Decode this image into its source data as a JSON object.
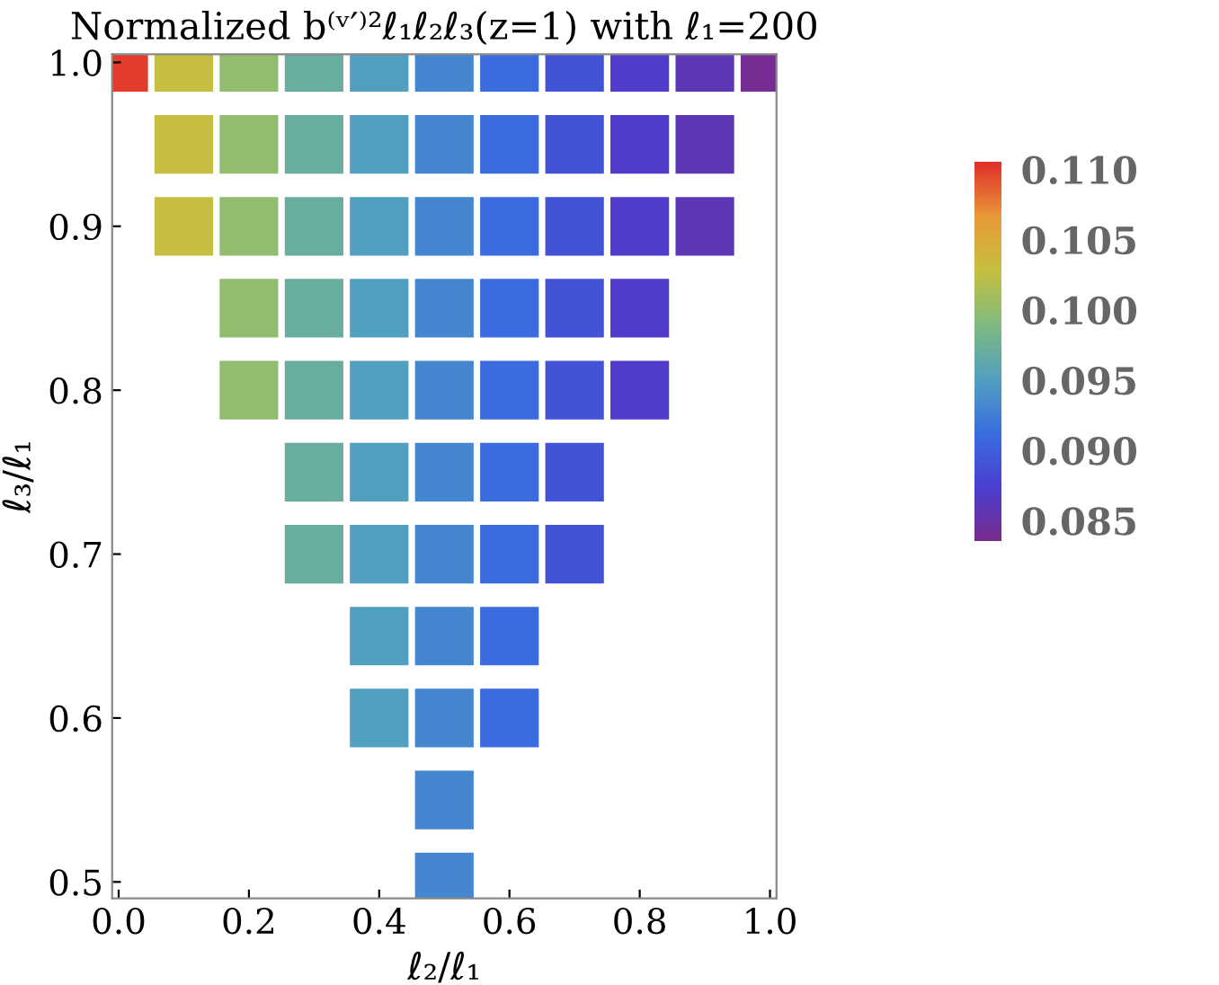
{
  "chart_data": {
    "type": "scatter",
    "title": "Normalized b⁽ᵛ′⁾²ℓ₁ℓ₂ℓ₃(z=1) with ℓ₁=200",
    "xlabel": "ℓ₂/ℓ₁",
    "ylabel": "ℓ₃/ℓ₁",
    "xlim": [
      -0.01,
      1.01
    ],
    "ylim": [
      0.49,
      1.005
    ],
    "xticks": [
      {
        "value": 0,
        "label": "0.0"
      },
      0.2,
      0.4,
      0.6,
      0.8,
      {
        "value": 1,
        "label": "1.0"
      }
    ],
    "yticks": [
      0.5,
      0.6,
      0.7,
      0.8,
      0.9,
      {
        "value": 1,
        "label": "1.0"
      }
    ],
    "clim": [
      0.0835,
      0.1105
    ],
    "cticks": [
      0.085,
      {
        "value": 0.09,
        "label": "0.090"
      },
      0.095,
      {
        "value": 0.1,
        "label": "0.100"
      },
      0.105,
      {
        "value": 0.11,
        "label": "0.110"
      }
    ],
    "marker": "square",
    "grid": false,
    "series": [
      {
        "x": [
          0.0
        ],
        "values": [
          1.0
        ],
        "cvalues": [
          0.11
        ]
      },
      {
        "x": [
          0.1,
          0.1,
          0.1
        ],
        "values": [
          0.9,
          0.95,
          1.0
        ],
        "cvalues": [
          0.103,
          0.103,
          0.103
        ]
      },
      {
        "x": [
          0.2,
          0.2,
          0.2,
          0.2,
          0.2
        ],
        "values": [
          0.8,
          0.85,
          0.9,
          0.95,
          1.0
        ],
        "cvalues": [
          0.1,
          0.1,
          0.1,
          0.1,
          0.1
        ]
      },
      {
        "x": [
          0.3,
          0.3,
          0.3,
          0.3,
          0.3,
          0.3,
          0.3
        ],
        "values": [
          0.7,
          0.75,
          0.8,
          0.85,
          0.9,
          0.95,
          1.0
        ],
        "cvalues": [
          0.097,
          0.097,
          0.097,
          0.097,
          0.097,
          0.097,
          0.097
        ]
      },
      {
        "x": [
          0.4,
          0.4,
          0.4,
          0.4,
          0.4,
          0.4,
          0.4,
          0.4,
          0.4
        ],
        "values": [
          0.6,
          0.65,
          0.7,
          0.75,
          0.8,
          0.85,
          0.9,
          0.95,
          1.0
        ],
        "cvalues": [
          0.095,
          0.095,
          0.095,
          0.095,
          0.095,
          0.095,
          0.095,
          0.095,
          0.095
        ]
      },
      {
        "x": [
          0.5,
          0.5,
          0.5,
          0.5,
          0.5,
          0.5,
          0.5,
          0.5,
          0.5,
          0.5,
          0.5
        ],
        "values": [
          0.5,
          0.55,
          0.6,
          0.65,
          0.7,
          0.75,
          0.8,
          0.85,
          0.9,
          0.95,
          1.0
        ],
        "cvalues": [
          0.093,
          0.093,
          0.093,
          0.093,
          0.093,
          0.093,
          0.093,
          0.093,
          0.093,
          0.093,
          0.093
        ]
      },
      {
        "x": [
          0.6,
          0.6,
          0.6,
          0.6,
          0.6,
          0.6,
          0.6,
          0.6,
          0.6
        ],
        "values": [
          0.6,
          0.65,
          0.7,
          0.75,
          0.8,
          0.85,
          0.9,
          0.95,
          1.0
        ],
        "cvalues": [
          0.091,
          0.091,
          0.091,
          0.091,
          0.091,
          0.091,
          0.091,
          0.091,
          0.091
        ]
      },
      {
        "x": [
          0.7,
          0.7,
          0.7,
          0.7,
          0.7,
          0.7,
          0.7
        ],
        "values": [
          0.7,
          0.75,
          0.8,
          0.85,
          0.9,
          0.95,
          1.0
        ],
        "cvalues": [
          0.089,
          0.089,
          0.089,
          0.089,
          0.089,
          0.089,
          0.089
        ]
      },
      {
        "x": [
          0.8,
          0.8,
          0.8,
          0.8,
          0.8
        ],
        "values": [
          0.8,
          0.85,
          0.9,
          0.95,
          1.0
        ],
        "cvalues": [
          0.087,
          0.087,
          0.087,
          0.087,
          0.087
        ]
      },
      {
        "x": [
          0.9,
          0.9,
          0.9
        ],
        "values": [
          0.9,
          0.95,
          1.0
        ],
        "cvalues": [
          0.086,
          0.086,
          0.086
        ]
      },
      {
        "x": [
          1.0
        ],
        "values": [
          1.0
        ],
        "cvalues": [
          0.084
        ]
      }
    ]
  }
}
